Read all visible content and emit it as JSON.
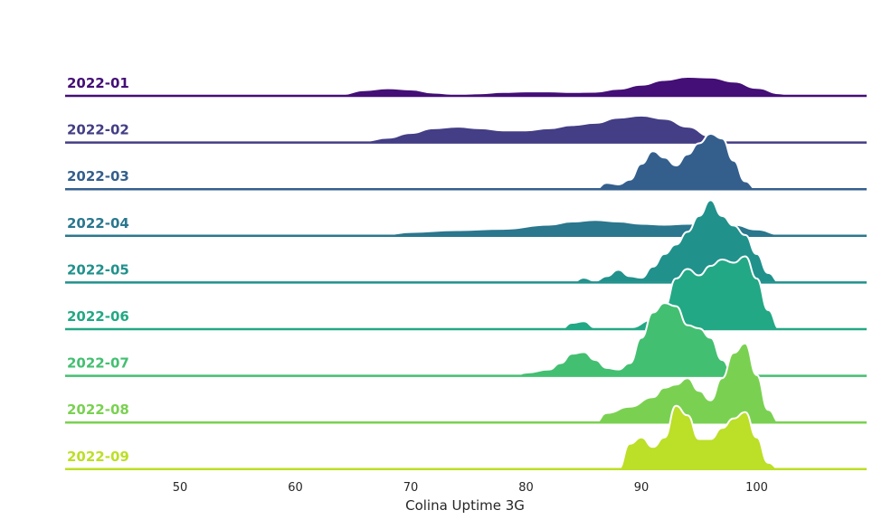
{
  "chart_data": {
    "type": "ridgeline",
    "xlabel": "Colina Uptime 3G",
    "xlim": [
      40,
      110
    ],
    "xticks": [
      50,
      60,
      70,
      80,
      90,
      100
    ],
    "grid": false,
    "series": [
      {
        "name": "2022-01",
        "color": "#440f76",
        "points": [
          [
            62,
            0
          ],
          [
            64,
            0.05
          ],
          [
            66,
            0.18
          ],
          [
            68,
            0.24
          ],
          [
            70,
            0.2
          ],
          [
            72,
            0.1
          ],
          [
            74,
            0.05
          ],
          [
            76,
            0.08
          ],
          [
            78,
            0.12
          ],
          [
            80,
            0.14
          ],
          [
            82,
            0.14
          ],
          [
            84,
            0.12
          ],
          [
            86,
            0.13
          ],
          [
            88,
            0.22
          ],
          [
            90,
            0.35
          ],
          [
            92,
            0.5
          ],
          [
            94,
            0.6
          ],
          [
            96,
            0.58
          ],
          [
            98,
            0.45
          ],
          [
            100,
            0.25
          ],
          [
            102,
            0.08
          ],
          [
            103,
            0
          ]
        ]
      },
      {
        "name": "2022-02",
        "color": "#433e85",
        "points": [
          [
            48,
            0
          ],
          [
            50,
            0.03
          ],
          [
            52,
            0.02
          ],
          [
            54,
            0
          ],
          [
            62,
            0.01
          ],
          [
            66,
            0.05
          ],
          [
            68,
            0.15
          ],
          [
            70,
            0.3
          ],
          [
            72,
            0.45
          ],
          [
            74,
            0.5
          ],
          [
            76,
            0.45
          ],
          [
            78,
            0.38
          ],
          [
            80,
            0.38
          ],
          [
            82,
            0.45
          ],
          [
            84,
            0.55
          ],
          [
            86,
            0.62
          ],
          [
            88,
            0.78
          ],
          [
            90,
            0.85
          ],
          [
            92,
            0.75
          ],
          [
            94,
            0.5
          ],
          [
            96,
            0.2
          ],
          [
            98,
            0
          ]
        ]
      },
      {
        "name": "2022-03",
        "color": "#345f8d",
        "points": [
          [
            86,
            0
          ],
          [
            87,
            0.2
          ],
          [
            88,
            0.15
          ],
          [
            89,
            0.3
          ],
          [
            90,
            0.8
          ],
          [
            91,
            1.2
          ],
          [
            92,
            1.0
          ],
          [
            93,
            0.75
          ],
          [
            94,
            1.1
          ],
          [
            95,
            1.45
          ],
          [
            96,
            1.75
          ],
          [
            97,
            1.6
          ],
          [
            98,
            0.9
          ],
          [
            99,
            0.25
          ],
          [
            100,
            0
          ]
        ]
      },
      {
        "name": "2022-04",
        "color": "#2a778e",
        "points": [
          [
            66,
            0
          ],
          [
            68,
            0.05
          ],
          [
            70,
            0.12
          ],
          [
            74,
            0.18
          ],
          [
            78,
            0.22
          ],
          [
            82,
            0.35
          ],
          [
            84,
            0.45
          ],
          [
            86,
            0.5
          ],
          [
            88,
            0.45
          ],
          [
            90,
            0.38
          ],
          [
            92,
            0.35
          ],
          [
            94,
            0.38
          ],
          [
            96,
            0.42
          ],
          [
            98,
            0.35
          ],
          [
            100,
            0.2
          ],
          [
            102,
            0.05
          ],
          [
            103,
            0
          ]
        ]
      },
      {
        "name": "2022-05",
        "color": "#21918c",
        "points": [
          [
            84,
            0
          ],
          [
            85,
            0.15
          ],
          [
            86,
            0.05
          ],
          [
            87,
            0.2
          ],
          [
            88,
            0.4
          ],
          [
            89,
            0.2
          ],
          [
            90,
            0.15
          ],
          [
            91,
            0.5
          ],
          [
            92,
            0.9
          ],
          [
            93,
            1.2
          ],
          [
            94,
            1.6
          ],
          [
            95,
            2.1
          ],
          [
            96,
            2.6
          ],
          [
            97,
            2.1
          ],
          [
            98,
            1.8
          ],
          [
            99,
            1.5
          ],
          [
            100,
            0.9
          ],
          [
            101,
            0.3
          ],
          [
            102,
            0
          ]
        ]
      },
      {
        "name": "2022-06",
        "color": "#22a884",
        "points": [
          [
            83,
            0
          ],
          [
            84,
            0.2
          ],
          [
            85,
            0.25
          ],
          [
            86,
            0.05
          ],
          [
            87,
            0
          ],
          [
            89,
            0.05
          ],
          [
            91,
            0.3
          ],
          [
            92,
            0.7
          ],
          [
            93,
            1.6
          ],
          [
            94,
            1.9
          ],
          [
            95,
            1.7
          ],
          [
            96,
            2.0
          ],
          [
            97,
            2.2
          ],
          [
            98,
            2.1
          ],
          [
            99,
            2.3
          ],
          [
            100,
            1.6
          ],
          [
            101,
            0.6
          ],
          [
            102,
            0
          ]
        ]
      },
      {
        "name": "2022-07",
        "color": "#43bf71",
        "points": [
          [
            79,
            0
          ],
          [
            80,
            0.1
          ],
          [
            82,
            0.2
          ],
          [
            83,
            0.4
          ],
          [
            84,
            0.7
          ],
          [
            85,
            0.75
          ],
          [
            86,
            0.5
          ],
          [
            87,
            0.25
          ],
          [
            88,
            0.2
          ],
          [
            89,
            0.4
          ],
          [
            90,
            1.2
          ],
          [
            91,
            2.0
          ],
          [
            92,
            2.3
          ],
          [
            93,
            2.2
          ],
          [
            94,
            1.6
          ],
          [
            95,
            1.5
          ],
          [
            96,
            1.2
          ],
          [
            97,
            0.5
          ],
          [
            98,
            0
          ]
        ]
      },
      {
        "name": "2022-08",
        "color": "#7ad151",
        "points": [
          [
            86,
            0
          ],
          [
            87,
            0.3
          ],
          [
            89,
            0.5
          ],
          [
            91,
            0.8
          ],
          [
            92,
            1.1
          ],
          [
            93,
            1.2
          ],
          [
            94,
            1.4
          ],
          [
            95,
            1.0
          ],
          [
            96,
            0.7
          ],
          [
            97,
            1.4
          ],
          [
            98,
            2.2
          ],
          [
            99,
            2.5
          ],
          [
            100,
            1.5
          ],
          [
            101,
            0.4
          ],
          [
            102,
            0
          ]
        ]
      },
      {
        "name": "2022-09",
        "color": "#bcdf27",
        "points": [
          [
            88,
            0
          ],
          [
            89,
            0.8
          ],
          [
            90,
            1.0
          ],
          [
            91,
            0.7
          ],
          [
            92,
            1.0
          ],
          [
            93,
            2.0
          ],
          [
            94,
            1.7
          ],
          [
            95,
            0.95
          ],
          [
            96,
            0.95
          ],
          [
            97,
            1.3
          ],
          [
            98,
            1.6
          ],
          [
            99,
            1.8
          ],
          [
            100,
            1.0
          ],
          [
            101,
            0.2
          ],
          [
            102,
            0
          ]
        ]
      }
    ]
  }
}
